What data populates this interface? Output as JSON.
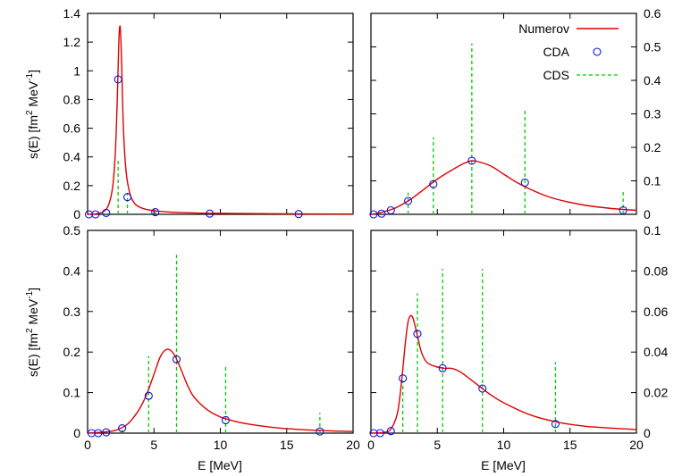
{
  "colors": {
    "numerov": "#e00000",
    "cda": "#1010e0",
    "cds": "#00d000"
  },
  "legend": {
    "placement": "top-right",
    "numerov": "Numerov",
    "cda": "CDA",
    "cds": "CDS"
  },
  "chart_data": [
    {
      "type": "line",
      "position": "top-left",
      "ylabel": "s(E) [fm^2 MeV^-1]",
      "xlim": [
        0,
        20
      ],
      "ylim": [
        0,
        1.4
      ],
      "yticks": [
        "0",
        "0.2",
        "0.4",
        "0.6",
        "0.8",
        "1",
        "1.2",
        "1.4"
      ],
      "numerov": {
        "x": [
          0,
          0.6,
          1.2,
          1.6,
          1.9,
          2.1,
          2.25,
          2.35,
          2.45,
          2.55,
          2.7,
          2.9,
          3.2,
          3.6,
          4.2,
          5,
          6,
          8,
          10,
          14,
          20
        ],
        "y": [
          0,
          0.003,
          0.02,
          0.07,
          0.2,
          0.45,
          0.85,
          1.2,
          1.31,
          1.1,
          0.6,
          0.3,
          0.14,
          0.07,
          0.04,
          0.025,
          0.017,
          0.01,
          0.007,
          0.004,
          0.002
        ]
      },
      "cda": {
        "x": [
          0.1,
          0.6,
          1.4,
          2.3,
          3.0,
          5.1,
          9.2,
          15.9
        ],
        "y": [
          0.0,
          0.0,
          0.01,
          0.94,
          0.12,
          0.015,
          0.005,
          0.002
        ]
      },
      "cds": {
        "x": [
          2.3,
          3.0,
          5.1,
          9.2,
          15.9
        ],
        "y": [
          0.39,
          0.15,
          0.03,
          0.01,
          0.003
        ]
      }
    },
    {
      "type": "line",
      "position": "top-right",
      "xlim": [
        0,
        20
      ],
      "ylim": [
        0,
        0.6
      ],
      "yticks": [
        "0",
        "0.1",
        "0.2",
        "0.3",
        "0.4",
        "0.5",
        "0.6"
      ],
      "numerov": {
        "x": [
          0,
          0.5,
          1,
          1.5,
          2,
          3,
          4,
          5,
          6,
          7,
          7.6,
          8,
          9,
          10,
          11,
          12,
          13,
          14,
          16,
          18,
          20
        ],
        "y": [
          0,
          0.003,
          0.008,
          0.014,
          0.022,
          0.045,
          0.075,
          0.105,
          0.13,
          0.152,
          0.16,
          0.158,
          0.145,
          0.12,
          0.095,
          0.075,
          0.058,
          0.045,
          0.028,
          0.018,
          0.012
        ]
      },
      "cda": {
        "x": [
          0.2,
          0.8,
          1.5,
          2.8,
          4.7,
          7.6,
          11.6,
          19.0
        ],
        "y": [
          0.0,
          0.002,
          0.012,
          0.04,
          0.09,
          0.16,
          0.095,
          0.012
        ]
      },
      "cds": {
        "x": [
          2.8,
          4.7,
          7.6,
          11.6,
          19.0
        ],
        "y": [
          0.065,
          0.23,
          0.51,
          0.315,
          0.07
        ]
      }
    },
    {
      "type": "line",
      "position": "bottom-left",
      "xlabel": "E [MeV]",
      "ylabel": "s(E) [fm^2 MeV^-1]",
      "xlim": [
        0,
        20
      ],
      "ylim": [
        0,
        0.5
      ],
      "xticks": [
        "0",
        "5",
        "10",
        "15",
        "20"
      ],
      "yticks": [
        "0",
        "0.1",
        "0.2",
        "0.3",
        "0.4",
        "0.5"
      ],
      "numerov": {
        "x": [
          0,
          1,
          2,
          2.5,
          3,
          3.5,
          4,
          4.5,
          5,
          5.5,
          6,
          6.5,
          7,
          7.5,
          8,
          9,
          10,
          11,
          12,
          14,
          16,
          18,
          20
        ],
        "y": [
          0,
          0.002,
          0.006,
          0.012,
          0.022,
          0.04,
          0.065,
          0.1,
          0.145,
          0.19,
          0.207,
          0.195,
          0.16,
          0.12,
          0.09,
          0.058,
          0.04,
          0.03,
          0.023,
          0.014,
          0.009,
          0.006,
          0.004
        ]
      },
      "cda": {
        "x": [
          0.3,
          0.8,
          1.4,
          2.6,
          4.6,
          6.7,
          10.4,
          17.5
        ],
        "y": [
          0.0,
          0.0,
          0.002,
          0.012,
          0.092,
          0.182,
          0.032,
          0.004
        ]
      },
      "cds": {
        "x": [
          2.6,
          4.6,
          6.7,
          10.4,
          17.5
        ],
        "y": [
          0.015,
          0.19,
          0.44,
          0.17,
          0.05
        ]
      }
    },
    {
      "type": "line",
      "position": "bottom-right",
      "xlabel": "E [MeV]",
      "xlim": [
        0,
        20
      ],
      "ylim": [
        0,
        0.1
      ],
      "xticks": [
        "0",
        "5",
        "10",
        "15",
        "20"
      ],
      "yticks": [
        "0",
        "0.02",
        "0.04",
        "0.06",
        "0.08",
        "0.1"
      ],
      "numerov": {
        "x": [
          0,
          1,
          1.5,
          2,
          2.3,
          2.6,
          2.8,
          3.0,
          3.2,
          3.5,
          3.8,
          4.2,
          4.8,
          5.5,
          6,
          6.5,
          7,
          8,
          9,
          10,
          12,
          14,
          16,
          18,
          20
        ],
        "y": [
          0,
          0.0004,
          0.002,
          0.01,
          0.025,
          0.045,
          0.055,
          0.058,
          0.056,
          0.048,
          0.04,
          0.035,
          0.033,
          0.032,
          0.032,
          0.031,
          0.029,
          0.024,
          0.019,
          0.015,
          0.009,
          0.0055,
          0.0035,
          0.0025,
          0.0018
        ]
      },
      "cda": {
        "x": [
          0.2,
          0.7,
          1.5,
          2.4,
          3.5,
          5.4,
          8.4,
          13.9
        ],
        "y": [
          0.0,
          0.0,
          0.001,
          0.027,
          0.049,
          0.032,
          0.022,
          0.0045
        ]
      },
      "cds": {
        "x": [
          2.4,
          3.5,
          5.4,
          8.4,
          13.9
        ],
        "y": [
          0.026,
          0.069,
          0.081,
          0.081,
          0.035
        ]
      }
    }
  ]
}
